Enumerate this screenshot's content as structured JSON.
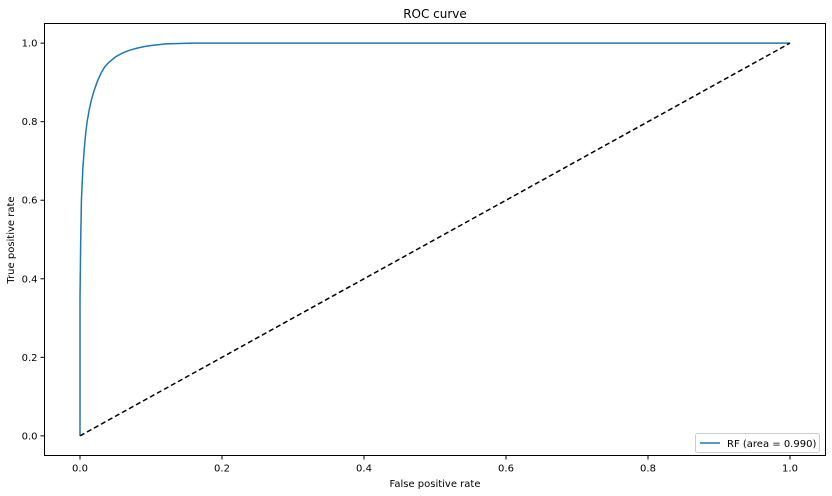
{
  "chart_data": {
    "type": "line",
    "title": "ROC curve",
    "xlabel": "False positive rate",
    "ylabel": "True positive rate",
    "xlim": [
      -0.05,
      1.05
    ],
    "ylim": [
      -0.05,
      1.05
    ],
    "xticks": [
      0.0,
      0.2,
      0.4,
      0.6,
      0.8,
      1.0
    ],
    "xtick_labels": [
      "0.0",
      "0.2",
      "0.4",
      "0.6",
      "0.8",
      "1.0"
    ],
    "yticks": [
      0.0,
      0.2,
      0.4,
      0.6,
      0.8,
      1.0
    ],
    "ytick_labels": [
      "0.0",
      "0.2",
      "0.4",
      "0.6",
      "0.8",
      "1.0"
    ],
    "grid": false,
    "legend_position": "lower-right",
    "series": [
      {
        "name": "RF (area = 0.990)",
        "color": "#1f77b4",
        "style": "solid",
        "x": [
          0.0,
          0.0,
          0.001,
          0.002,
          0.004,
          0.006,
          0.008,
          0.01,
          0.013,
          0.016,
          0.02,
          0.025,
          0.03,
          0.035,
          0.04,
          0.05,
          0.06,
          0.07,
          0.08,
          0.09,
          0.1,
          0.11,
          0.12,
          0.14,
          0.16,
          0.2,
          0.3,
          0.5,
          0.7,
          1.0
        ],
        "y": [
          0.0,
          0.35,
          0.5,
          0.6,
          0.68,
          0.73,
          0.77,
          0.8,
          0.83,
          0.855,
          0.88,
          0.905,
          0.925,
          0.94,
          0.95,
          0.965,
          0.975,
          0.982,
          0.987,
          0.991,
          0.994,
          0.996,
          0.998,
          0.999,
          1.0,
          1.0,
          1.0,
          1.0,
          1.0,
          1.0
        ]
      },
      {
        "name": "",
        "color": "#000000",
        "style": "dashed",
        "x": [
          0.0,
          1.0
        ],
        "y": [
          0.0,
          1.0
        ]
      }
    ]
  }
}
